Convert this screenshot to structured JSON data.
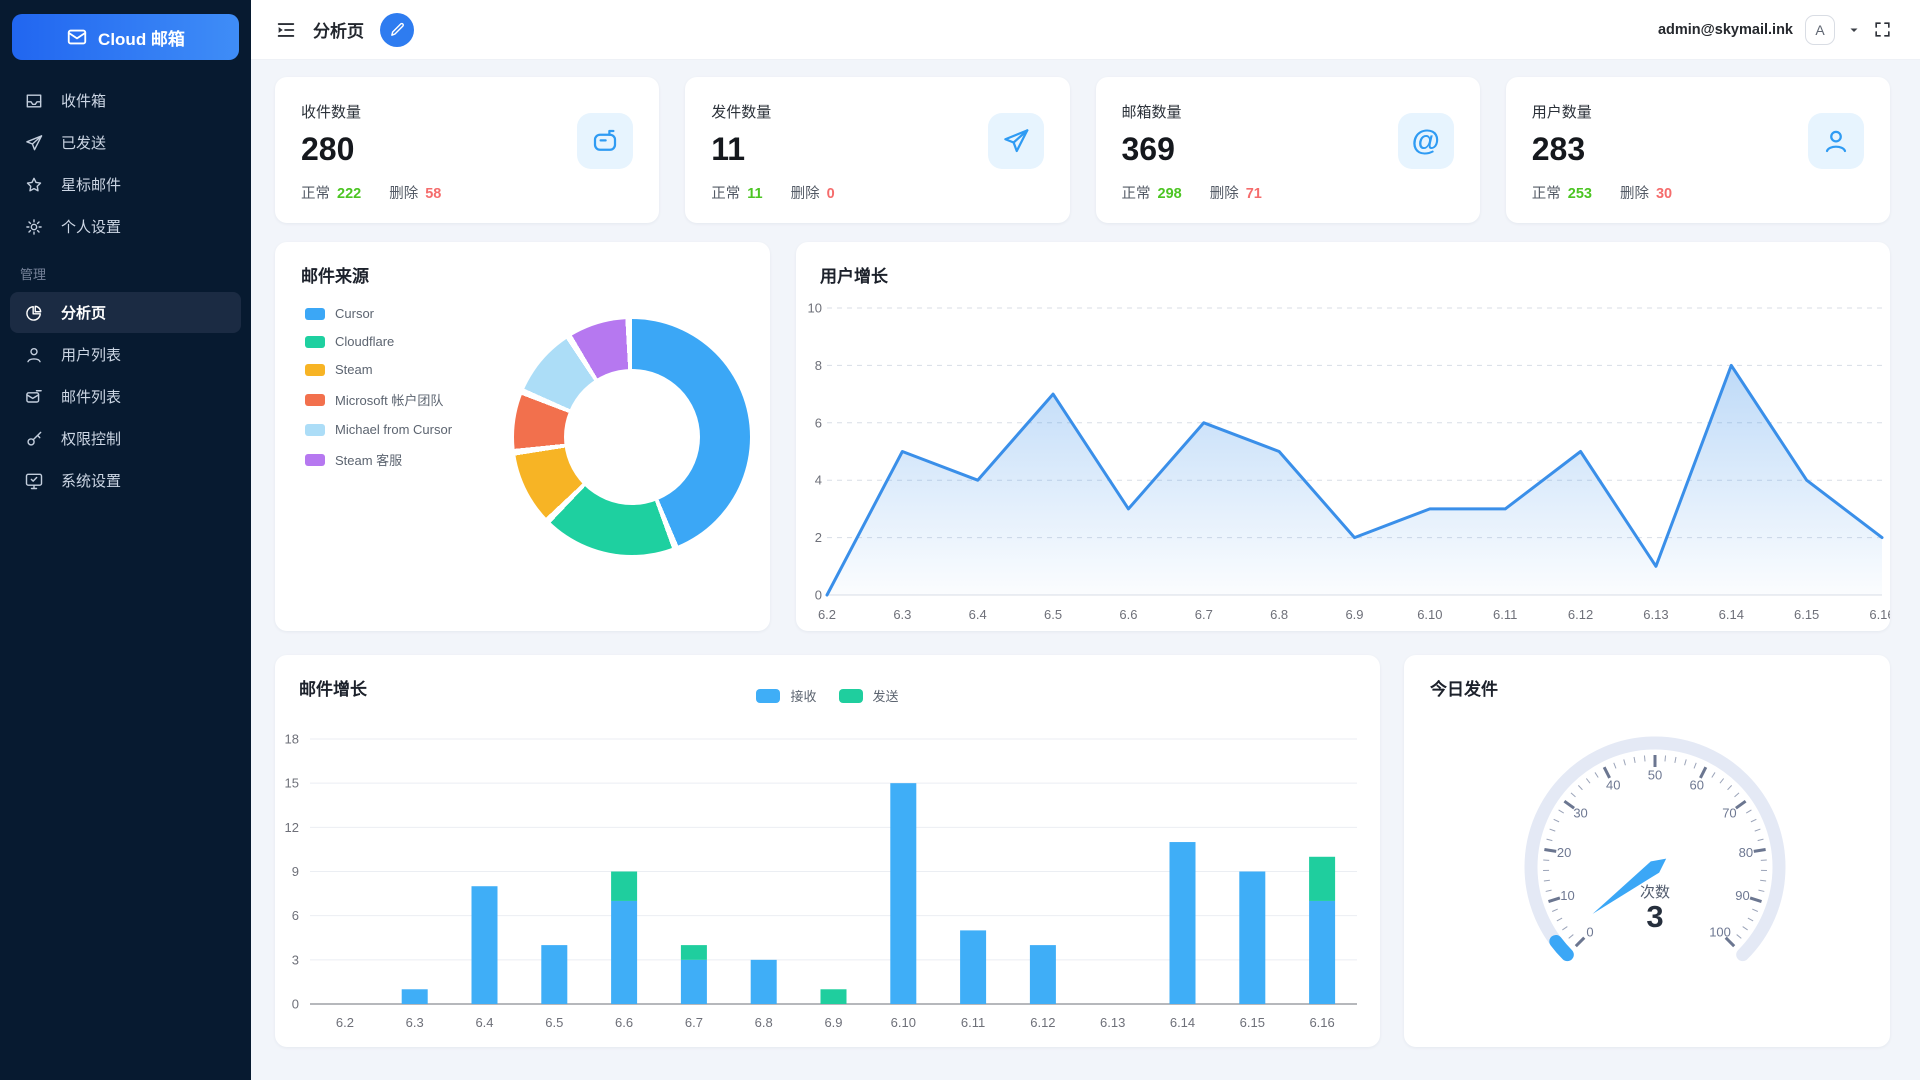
{
  "app": {
    "logo_text": "Cloud 邮箱",
    "page_title": "分析页",
    "user_email": "admin@skymail.ink",
    "avatar_letter": "A"
  },
  "sidebar": {
    "main_items": [
      {
        "label": "收件箱",
        "icon": "inbox"
      },
      {
        "label": "已发送",
        "icon": "send"
      },
      {
        "label": "星标邮件",
        "icon": "star"
      },
      {
        "label": "个人设置",
        "icon": "gear"
      }
    ],
    "section_label": "管理",
    "admin_items": [
      {
        "label": "分析页",
        "icon": "pie",
        "active": true
      },
      {
        "label": "用户列表",
        "icon": "user"
      },
      {
        "label": "邮件列表",
        "icon": "mail-list"
      },
      {
        "label": "权限控制",
        "icon": "key"
      },
      {
        "label": "系统设置",
        "icon": "monitor"
      }
    ]
  },
  "stat_cards": [
    {
      "title": "收件数量",
      "value": "280",
      "normal_label": "正常",
      "normal_value": "222",
      "deleted_label": "删除",
      "deleted_value": "58",
      "icon": "mailbox"
    },
    {
      "title": "发件数量",
      "value": "11",
      "normal_label": "正常",
      "normal_value": "11",
      "deleted_label": "删除",
      "deleted_value": "0",
      "icon": "plane"
    },
    {
      "title": "邮箱数量",
      "value": "369",
      "normal_label": "正常",
      "normal_value": "298",
      "deleted_label": "删除",
      "deleted_value": "71",
      "icon": "at"
    },
    {
      "title": "用户数量",
      "value": "283",
      "normal_label": "正常",
      "normal_value": "253",
      "deleted_label": "删除",
      "deleted_value": "30",
      "icon": "person"
    }
  ],
  "chart_data": [
    {
      "id": "mail_sources",
      "type": "pie",
      "title": "邮件来源",
      "legend_position": "left",
      "donut": true,
      "slices": [
        {
          "label": "Cursor",
          "value": 44.5,
          "color": "#3BA7F6"
        },
        {
          "label": "Cloudflare",
          "value": 18.5,
          "color": "#1ED0A0"
        },
        {
          "label": "Steam",
          "value": 10.4,
          "color": "#F7B425"
        },
        {
          "label": "Microsoft 帐户团队",
          "value": 8.3,
          "color": "#F2704D"
        },
        {
          "label": "Michael from Cursor",
          "value": 9.8,
          "color": "#ACDDF7"
        },
        {
          "label": "Steam 客服",
          "value": 8.5,
          "color": "#B678F0"
        }
      ]
    },
    {
      "id": "user_growth",
      "type": "area",
      "title": "用户增长",
      "x": [
        "6.2",
        "6.3",
        "6.4",
        "6.5",
        "6.6",
        "6.7",
        "6.8",
        "6.9",
        "6.10",
        "6.11",
        "6.12",
        "6.13",
        "6.14",
        "6.15",
        "6.16"
      ],
      "values": [
        0,
        5,
        4,
        7,
        3,
        6,
        5,
        2,
        3,
        3,
        5,
        1,
        8,
        4,
        2
      ],
      "ylim": [
        0,
        10
      ],
      "yticks": [
        0,
        2,
        4,
        6,
        8,
        10
      ],
      "line_color": "#3A8FE9",
      "grid": "dashed"
    },
    {
      "id": "mail_growth",
      "type": "bar",
      "stacked": true,
      "title": "邮件增长",
      "categories": [
        "6.2",
        "6.3",
        "6.4",
        "6.5",
        "6.6",
        "6.7",
        "6.8",
        "6.9",
        "6.10",
        "6.11",
        "6.12",
        "6.13",
        "6.14",
        "6.15",
        "6.16"
      ],
      "series": [
        {
          "name": "接收",
          "color": "#3FAEF7",
          "values": [
            0,
            1,
            8,
            4,
            7,
            3,
            3,
            0,
            15,
            5,
            4,
            0,
            11,
            9,
            7
          ]
        },
        {
          "name": "发送",
          "color": "#1FCE9E",
          "values": [
            0,
            0,
            0,
            0,
            2,
            1,
            0,
            1,
            0,
            0,
            0,
            0,
            0,
            0,
            3
          ]
        }
      ],
      "ylim": [
        0,
        18
      ],
      "yticks": [
        0,
        3,
        6,
        9,
        12,
        15,
        18
      ],
      "legend_position": "top"
    },
    {
      "id": "today_sent",
      "type": "gauge",
      "title": "今日发件",
      "min": 0,
      "max": 100,
      "value": 3,
      "unit_label": "次数",
      "tick_labels": [
        0,
        10,
        20,
        30,
        40,
        50,
        60,
        70,
        80,
        90,
        100
      ],
      "color": "#3BA7F6"
    }
  ]
}
